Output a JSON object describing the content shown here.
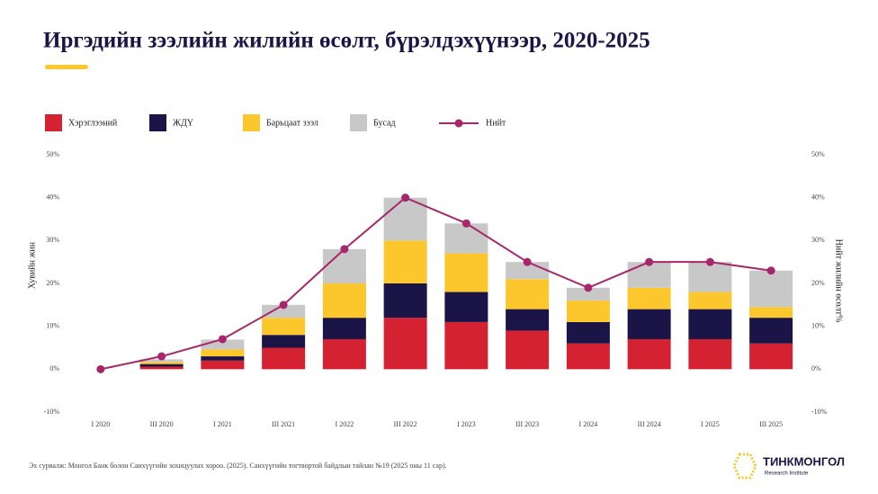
{
  "chart_data": {
    "type": "bar",
    "title": "Иргэдийн зээлийн жилийн өсөлт, бүрэлдэхүүнээр, 2020-2025",
    "categories": [
      "I 2020",
      "III 2020",
      "I 2021",
      "III 2021",
      "I 2022",
      "III 2022",
      "I 2023",
      "III 2023",
      "I 2024",
      "III 2024",
      "I 2025",
      "III 2025"
    ],
    "series": [
      {
        "name": "Хэрэглээний",
        "color": "#d42232",
        "values": [
          0,
          0.6,
          2,
          5,
          7,
          12,
          11,
          9,
          6,
          7,
          7,
          6
        ]
      },
      {
        "name": "ЖДҮ",
        "color": "#1b1446",
        "values": [
          0,
          0.6,
          1,
          3,
          5,
          8,
          7,
          5,
          5,
          7,
          7,
          6
        ]
      },
      {
        "name": "Барьцаат зээл",
        "color": "#fcc72c",
        "values": [
          0,
          0.5,
          1.6,
          4,
          8,
          10,
          9,
          7,
          5,
          5,
          4,
          2.5
        ]
      },
      {
        "name": "Бусад",
        "color": "#c8c8c8",
        "values": [
          0,
          0.6,
          2.3,
          3,
          8,
          10,
          7,
          4,
          3,
          6,
          7,
          8.5
        ]
      },
      {
        "name": "Нийт",
        "color": "#a8266b",
        "axis": "y2",
        "values": [
          0,
          3,
          7,
          15,
          28,
          40,
          34,
          25,
          19,
          25,
          25,
          23
        ]
      }
    ],
    "ylabel": "Хувийн жин",
    "y2label": "Нийт жилийн өсөлт%",
    "ylim": [
      -10,
      50
    ],
    "yticks": [
      {
        "value": -10,
        "label": "-10%"
      },
      {
        "value": 0,
        "label": "0%"
      },
      {
        "value": 10,
        "label": "10%"
      },
      {
        "value": 20,
        "label": "20%"
      },
      {
        "value": 30,
        "label": "30%"
      },
      {
        "value": 40,
        "label": "40%"
      },
      {
        "value": 50,
        "label": "50%"
      }
    ],
    "y2lim": [
      -10,
      50
    ],
    "y2ticks": [
      {
        "value": -10,
        "label": "-10%"
      },
      {
        "value": 0,
        "label": "0%"
      },
      {
        "value": 10,
        "label": "10%"
      },
      {
        "value": 20,
        "label": "20%"
      },
      {
        "value": 30,
        "label": "30%"
      },
      {
        "value": 40,
        "label": "40%"
      },
      {
        "value": 50,
        "label": "50%"
      }
    ],
    "source": "Эх сурвалж: Монгол Банк болон Санхүүгийн зохицуулах хороо. (2025). Санхүүгийн тогтвортой байдлын тайлан №19 (2025 оны 11 сар).",
    "logo": {
      "name": "ТИНКМОНГОЛ",
      "subtitle": "Research Institute"
    }
  }
}
